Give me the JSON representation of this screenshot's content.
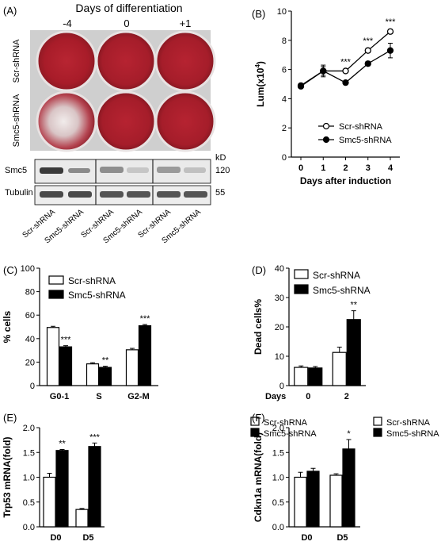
{
  "panelA": {
    "label": "(A)",
    "header": "Days of differentiation",
    "days": [
      "-4",
      "0",
      "+1"
    ],
    "rows": [
      "Scr-shRNA",
      "Smc5-shRNA"
    ],
    "blot_unit": "kD",
    "blot_rows": [
      {
        "name": "Smc5",
        "kd": "120"
      },
      {
        "name": "Tubulin",
        "kd": "55"
      }
    ],
    "lanes": [
      "Scr-shRNA",
      "Smc5-shRNA",
      "Scr-shRNA",
      "Smc5-shRNA",
      "Scr-shRNA",
      "Smc5-shRNA"
    ],
    "colors": {
      "stain": "#b01f2c",
      "plate_bg": "#cfcfcf",
      "well_rim": "#e6e0e0"
    }
  },
  "chart_data": [
    {
      "id": "B",
      "panel_label": "(B)",
      "type": "line",
      "xlabel": "Days after induction",
      "ylabel": "Lum(x10",
      "ylabel_sup": "4",
      "ylabel_end": ")",
      "x": [
        0,
        1,
        2,
        3,
        4
      ],
      "xticks": [
        "0",
        "1",
        "2",
        "3",
        "4"
      ],
      "ylim": [
        0,
        10
      ],
      "yticks": [
        "0",
        "2",
        "4",
        "6",
        "8",
        "10"
      ],
      "series": [
        {
          "name": "Scr-shRNA",
          "marker": "open",
          "values": [
            4.9,
            5.9,
            5.9,
            7.3,
            8.6
          ],
          "errors": [
            0.1,
            0.3,
            0.1,
            0.15,
            0.15
          ]
        },
        {
          "name": "Smc5-shRNA",
          "marker": "filled",
          "values": [
            4.85,
            5.9,
            5.1,
            6.4,
            7.3
          ],
          "errors": [
            0.1,
            0.4,
            0.1,
            0.15,
            0.5
          ]
        }
      ],
      "annotations": [
        {
          "x": 2,
          "text": "***"
        },
        {
          "x": 3,
          "text": "***"
        },
        {
          "x": 4,
          "text": "***"
        }
      ],
      "legend": "bottom-right"
    },
    {
      "id": "C",
      "panel_label": "(C)",
      "type": "bar",
      "ylabel": "% cells",
      "categories": [
        "G0-1",
        "S",
        "G2-M"
      ],
      "ylim": [
        0,
        100
      ],
      "yticks": [
        "0",
        "20",
        "40",
        "60",
        "80",
        "100"
      ],
      "series": [
        {
          "name": "Scr-shRNA",
          "fill": "open",
          "values": [
            49.5,
            18.5,
            30.5
          ],
          "errors": [
            1.0,
            1.0,
            1.2
          ]
        },
        {
          "name": "Smc5-shRNA",
          "fill": "filled",
          "values": [
            33,
            15.5,
            51
          ],
          "errors": [
            1.0,
            1.0,
            1.0
          ]
        }
      ],
      "annotations": [
        "***",
        "**",
        "***"
      ],
      "legend": "top-left"
    },
    {
      "id": "D",
      "panel_label": "(D)",
      "type": "bar",
      "ylabel": "Dead cells%",
      "xprefix": "Days",
      "categories": [
        "0",
        "2"
      ],
      "ylim": [
        0,
        40
      ],
      "yticks": [
        "0",
        "10",
        "20",
        "30",
        "40"
      ],
      "series": [
        {
          "name": "Scr-shRNA",
          "fill": "open",
          "values": [
            6.2,
            11.3
          ],
          "errors": [
            0.5,
            1.8
          ]
        },
        {
          "name": "Smc5-shRNA",
          "fill": "filled",
          "values": [
            6.0,
            22.5
          ],
          "errors": [
            0.5,
            3.0
          ]
        }
      ],
      "annotations": [
        "",
        "**"
      ],
      "legend": "top-right"
    },
    {
      "id": "E",
      "panel_label": "(E)",
      "type": "bar",
      "ylabel": "Trp53 mRNA(fold)",
      "categories": [
        "D0",
        "D5"
      ],
      "ylim": [
        0,
        2.0
      ],
      "yticks": [
        "0.0",
        "0.5",
        "1.0",
        "1.5",
        "2.0"
      ],
      "series": [
        {
          "name": "Scr-shRNA",
          "fill": "open",
          "values": [
            1.0,
            0.35
          ],
          "errors": [
            0.08,
            0.02
          ]
        },
        {
          "name": "Smc5-shRNA",
          "fill": "filled",
          "values": [
            1.54,
            1.62
          ],
          "errors": [
            0.02,
            0.07
          ]
        }
      ],
      "annotations": [
        "**",
        "***"
      ],
      "legend": "top-right"
    },
    {
      "id": "F",
      "panel_label": "(F)",
      "type": "bar",
      "ylabel": "Cdkn1a mRNA(fold)",
      "categories": [
        "D0",
        "D5"
      ],
      "ylim": [
        0,
        2.0
      ],
      "yticks": [
        "0.0",
        "0.5",
        "1.0",
        "1.5",
        "2.0"
      ],
      "series": [
        {
          "name": "Scr-shRNA",
          "fill": "open",
          "values": [
            1.0,
            1.04
          ],
          "errors": [
            0.1,
            0.03
          ]
        },
        {
          "name": "Smc5-shRNA",
          "fill": "filled",
          "values": [
            1.12,
            1.57
          ],
          "errors": [
            0.06,
            0.19
          ]
        }
      ],
      "annotations": [
        "",
        "*"
      ],
      "legend": "top-right"
    }
  ]
}
